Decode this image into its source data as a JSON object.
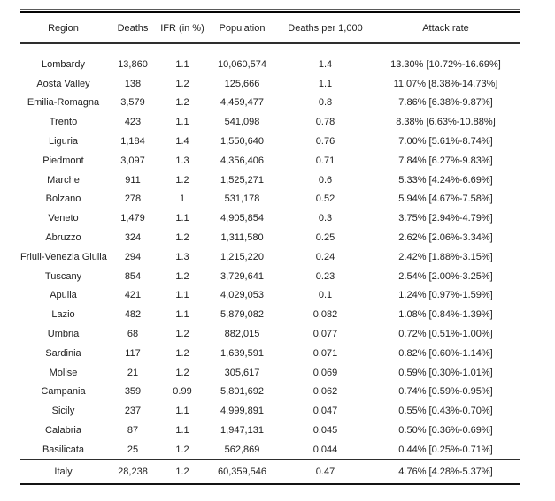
{
  "chart_data": {
    "type": "table",
    "columns": [
      "Region",
      "Deaths",
      "IFR (in %)",
      "Population",
      "Deaths per 1,000",
      "Attack rate"
    ],
    "rows": [
      [
        "Lombardy",
        "13,860",
        "1.1",
        "10,060,574",
        "1.4",
        "13.30% [10.72%-16.69%]"
      ],
      [
        "Aosta Valley",
        "138",
        "1.2",
        "125,666",
        "1.1",
        "11.07% [8.38%-14.73%]"
      ],
      [
        "Emilia-Romagna",
        "3,579",
        "1.2",
        "4,459,477",
        "0.8",
        "7.86% [6.38%-9.87%]"
      ],
      [
        "Trento",
        "423",
        "1.1",
        "541,098",
        "0.78",
        "8.38% [6.63%-10.88%]"
      ],
      [
        "Liguria",
        "1,184",
        "1.4",
        "1,550,640",
        "0.76",
        "7.00% [5.61%-8.74%]"
      ],
      [
        "Piedmont",
        "3,097",
        "1.3",
        "4,356,406",
        "0.71",
        "7.84% [6.27%-9.83%]"
      ],
      [
        "Marche",
        "911",
        "1.2",
        "1,525,271",
        "0.6",
        "5.33% [4.24%-6.69%]"
      ],
      [
        "Bolzano",
        "278",
        "1",
        "531,178",
        "0.52",
        "5.94% [4.67%-7.58%]"
      ],
      [
        "Veneto",
        "1,479",
        "1.1",
        "4,905,854",
        "0.3",
        "3.75% [2.94%-4.79%]"
      ],
      [
        "Abruzzo",
        "324",
        "1.2",
        "1,311,580",
        "0.25",
        "2.62% [2.06%-3.34%]"
      ],
      [
        "Friuli-Venezia Giulia",
        "294",
        "1.3",
        "1,215,220",
        "0.24",
        "2.42% [1.88%-3.15%]"
      ],
      [
        "Tuscany",
        "854",
        "1.2",
        "3,729,641",
        "0.23",
        "2.54% [2.00%-3.25%]"
      ],
      [
        "Apulia",
        "421",
        "1.1",
        "4,029,053",
        "0.1",
        "1.24% [0.97%-1.59%]"
      ],
      [
        "Lazio",
        "482",
        "1.1",
        "5,879,082",
        "0.082",
        "1.08% [0.84%-1.39%]"
      ],
      [
        "Umbria",
        "68",
        "1.2",
        "882,015",
        "0.077",
        "0.72% [0.51%-1.00%]"
      ],
      [
        "Sardinia",
        "117",
        "1.2",
        "1,639,591",
        "0.071",
        "0.82% [0.60%-1.14%]"
      ],
      [
        "Molise",
        "21",
        "1.2",
        "305,617",
        "0.069",
        "0.59% [0.30%-1.01%]"
      ],
      [
        "Campania",
        "359",
        "0.99",
        "5,801,692",
        "0.062",
        "0.74% [0.59%-0.95%]"
      ],
      [
        "Sicily",
        "237",
        "1.1",
        "4,999,891",
        "0.047",
        "0.55% [0.43%-0.70%]"
      ],
      [
        "Calabria",
        "87",
        "1.1",
        "1,947,131",
        "0.045",
        "0.50% [0.36%-0.69%]"
      ],
      [
        "Basilicata",
        "25",
        "1.2",
        "562,869",
        "0.044",
        "0.44% [0.25%-0.71%]"
      ]
    ],
    "totals_row": [
      "Italy",
      "28,238",
      "1.2",
      "60,359,546",
      "0.47",
      "4.76% [4.28%-5.37%]"
    ]
  },
  "colors": {
    "text": "#212121",
    "rule_dark": "#050505",
    "rule_mid": "#2e2e2e"
  }
}
